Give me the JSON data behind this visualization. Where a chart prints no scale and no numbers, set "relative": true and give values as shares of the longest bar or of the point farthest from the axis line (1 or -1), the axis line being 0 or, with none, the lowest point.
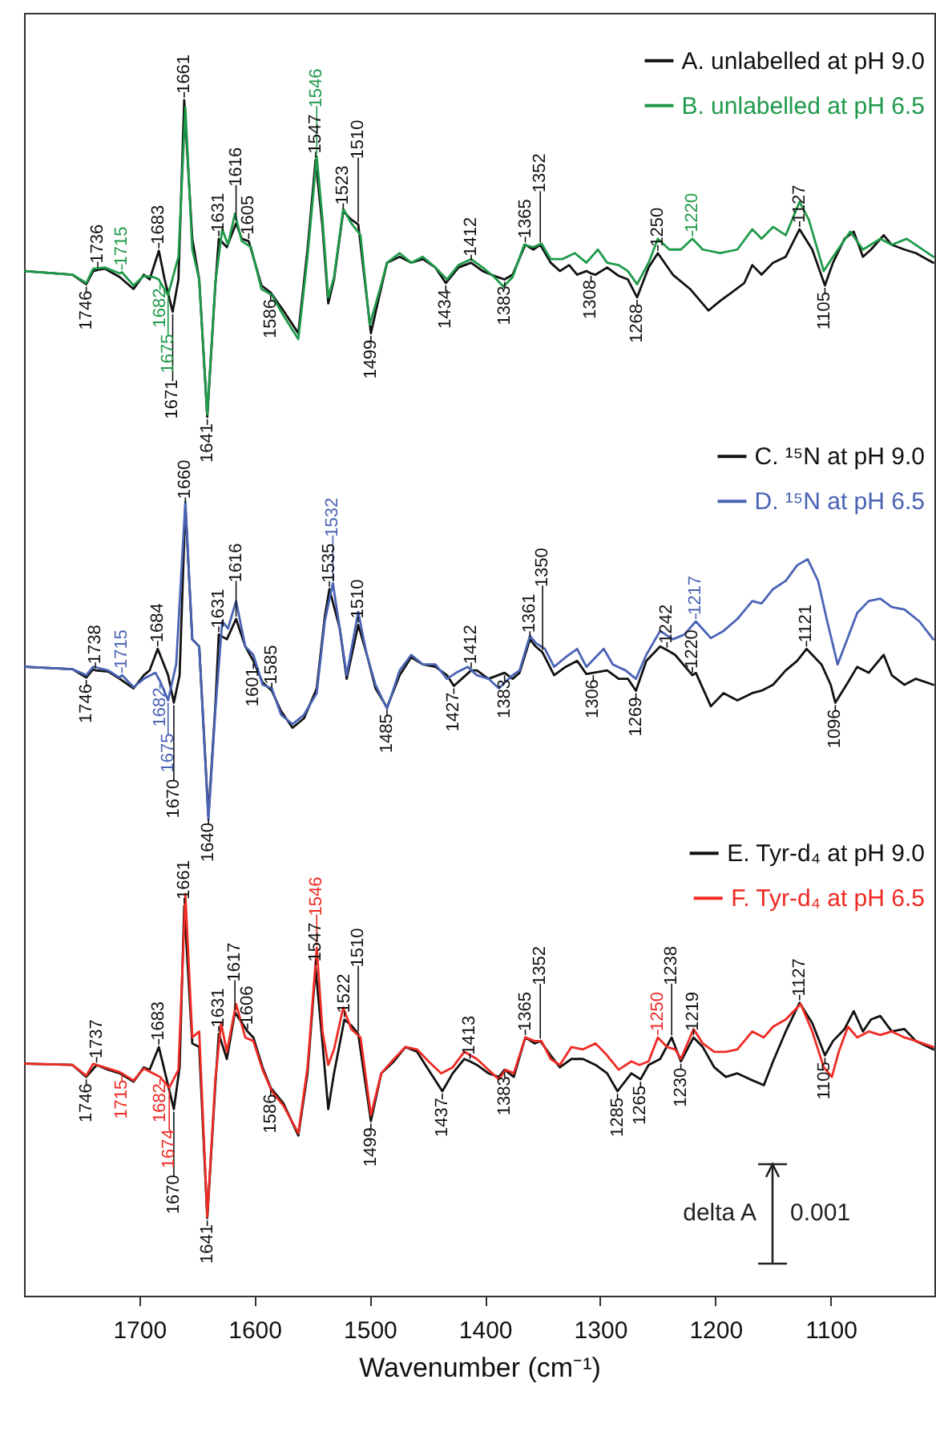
{
  "chart_data": {
    "type": "line",
    "relative": true,
    "xlabel": "Wavenumber (cm⁻¹)",
    "xlim": [
      1800,
      1010
    ],
    "xticks": [
      1700,
      1600,
      1500,
      1400,
      1300,
      1200,
      1100
    ],
    "legend": "top right",
    "series": [
      {
        "name": "A. unlabelled at pH 9.0",
        "color": "#111111",
        "x": [
          1799,
          1758,
          1746,
          1740,
          1736,
          1730,
          1717,
          1705,
          1696,
          1691,
          1683,
          1678,
          1671,
          1666,
          1661,
          1654,
          1648,
          1641,
          1634,
          1631,
          1624,
          1616,
          1611,
          1605,
          1594,
          1586,
          1575,
          1562,
          1554,
          1547,
          1541,
          1536,
          1531,
          1523,
          1516,
          1510,
          1499,
          1492,
          1485,
          1474,
          1464,
          1454,
          1443,
          1434,
          1423,
          1412,
          1402,
          1392,
          1383,
          1376,
          1365,
          1358,
          1352,
          1343,
          1335,
          1327,
          1320,
          1312,
          1308,
          1304,
          1294,
          1284,
          1276,
          1268,
          1258,
          1250,
          1237,
          1222,
          1206,
          1196,
          1186,
          1175,
          1168,
          1160,
          1150,
          1139,
          1127,
          1116,
          1105,
          1098,
          1088,
          1080,
          1072,
          1065,
          1054,
          1047,
          1036,
          1026,
          1011
        ],
        "values": [
          0.857,
          0.854,
          0.846,
          0.857,
          0.858,
          0.859,
          0.852,
          0.842,
          0.854,
          0.85,
          0.874,
          0.85,
          0.823,
          0.85,
          1.0,
          0.884,
          0.85,
          0.735,
          0.845,
          0.884,
          0.877,
          0.897,
          0.884,
          0.882,
          0.845,
          0.839,
          0.824,
          0.805,
          0.875,
          0.95,
          0.894,
          0.83,
          0.85,
          0.907,
          0.9,
          0.896,
          0.805,
          0.835,
          0.864,
          0.869,
          0.864,
          0.867,
          0.86,
          0.847,
          0.86,
          0.864,
          0.857,
          0.853,
          0.85,
          0.854,
          0.879,
          0.875,
          0.879,
          0.864,
          0.857,
          0.862,
          0.854,
          0.857,
          0.855,
          0.854,
          0.86,
          0.853,
          0.85,
          0.835,
          0.86,
          0.872,
          0.854,
          0.842,
          0.824,
          0.832,
          0.839,
          0.847,
          0.862,
          0.854,
          0.864,
          0.869,
          0.892,
          0.875,
          0.845,
          0.864,
          0.884,
          0.89,
          0.869,
          0.875,
          0.887,
          0.879,
          0.875,
          0.872,
          0.864
        ]
      },
      {
        "name": "B. unlabelled at pH 6.5",
        "color": "#1f9a4a",
        "x": [
          1799,
          1758,
          1746,
          1740,
          1730,
          1717,
          1715,
          1705,
          1696,
          1688,
          1683,
          1682,
          1675,
          1666,
          1660,
          1654,
          1648,
          1641,
          1634,
          1628,
          1623,
          1617,
          1611,
          1603,
          1594,
          1585,
          1575,
          1562,
          1554,
          1546,
          1541,
          1536,
          1531,
          1523,
          1516,
          1508,
          1500,
          1492,
          1485,
          1474,
          1464,
          1454,
          1443,
          1433,
          1423,
          1412,
          1402,
          1392,
          1384,
          1376,
          1366,
          1358,
          1351,
          1343,
          1333,
          1322,
          1312,
          1302,
          1294,
          1284,
          1276,
          1268,
          1258,
          1250,
          1240,
          1230,
          1220,
          1211,
          1196,
          1181,
          1168,
          1160,
          1150,
          1139,
          1127,
          1119,
          1106,
          1098,
          1083,
          1072,
          1057,
          1047,
          1034,
          1011
        ],
        "values": [
          0.857,
          0.854,
          0.847,
          0.859,
          0.86,
          0.855,
          0.856,
          0.845,
          0.853,
          0.852,
          0.85,
          0.848,
          0.837,
          0.869,
          0.994,
          0.875,
          0.85,
          0.737,
          0.847,
          0.892,
          0.879,
          0.905,
          0.882,
          0.877,
          0.842,
          0.837,
          0.82,
          0.8,
          0.869,
          0.953,
          0.9,
          0.835,
          0.852,
          0.909,
          0.897,
          0.887,
          0.812,
          0.839,
          0.864,
          0.872,
          0.864,
          0.869,
          0.86,
          0.85,
          0.862,
          0.867,
          0.86,
          0.852,
          0.844,
          0.852,
          0.879,
          0.877,
          0.88,
          0.867,
          0.867,
          0.872,
          0.864,
          0.875,
          0.864,
          0.862,
          0.857,
          0.846,
          0.864,
          0.884,
          0.875,
          0.875,
          0.884,
          0.875,
          0.872,
          0.875,
          0.892,
          0.884,
          0.894,
          0.887,
          0.915,
          0.9,
          0.857,
          0.869,
          0.89,
          0.875,
          0.884,
          0.879,
          0.884,
          0.869
        ]
      },
      {
        "name": "C. ¹⁵N at pH 9.0",
        "color": "#111111",
        "x": [
          1799,
          1758,
          1746,
          1740,
          1738,
          1727,
          1717,
          1705,
          1696,
          1691,
          1684,
          1675,
          1670,
          1665,
          1660,
          1654,
          1648,
          1640,
          1634,
          1631,
          1624,
          1616,
          1608,
          1601,
          1593,
          1585,
          1577,
          1567,
          1557,
          1546,
          1539,
          1535,
          1526,
          1520,
          1510,
          1503,
          1495,
          1485,
          1474,
          1464,
          1454,
          1443,
          1433,
          1427,
          1412,
          1407,
          1397,
          1383,
          1376,
          1370,
          1361,
          1356,
          1350,
          1340,
          1330,
          1320,
          1312,
          1306,
          1294,
          1284,
          1276,
          1269,
          1260,
          1248,
          1242,
          1235,
          1220,
          1217,
          1204,
          1193,
          1181,
          1168,
          1160,
          1150,
          1139,
          1129,
          1121,
          1108,
          1100,
          1096,
          1085,
          1077,
          1067,
          1054,
          1047,
          1036,
          1026,
          1011
        ],
        "values": [
          0.526,
          0.524,
          0.517,
          0.524,
          0.523,
          0.522,
          0.516,
          0.508,
          0.519,
          0.523,
          0.541,
          0.519,
          0.496,
          0.519,
          0.661,
          0.549,
          0.543,
          0.401,
          0.493,
          0.553,
          0.549,
          0.566,
          0.543,
          0.531,
          0.513,
          0.506,
          0.489,
          0.475,
          0.483,
          0.508,
          0.568,
          0.591,
          0.558,
          0.516,
          0.561,
          0.538,
          0.508,
          0.492,
          0.519,
          0.534,
          0.528,
          0.526,
          0.519,
          0.51,
          0.523,
          0.523,
          0.516,
          0.521,
          0.516,
          0.521,
          0.549,
          0.543,
          0.538,
          0.519,
          0.526,
          0.531,
          0.52,
          0.521,
          0.523,
          0.516,
          0.516,
          0.506,
          0.531,
          0.543,
          0.54,
          0.536,
          0.519,
          0.521,
          0.493,
          0.504,
          0.498,
          0.504,
          0.506,
          0.511,
          0.523,
          0.531,
          0.541,
          0.528,
          0.511,
          0.496,
          0.513,
          0.526,
          0.521,
          0.536,
          0.519,
          0.511,
          0.516,
          0.511
        ]
      },
      {
        "name": "D. ¹⁵N at pH 6.5",
        "color": "#4a63b5",
        "x": [
          1799,
          1758,
          1746,
          1740,
          1727,
          1717,
          1715,
          1705,
          1696,
          1686,
          1682,
          1675,
          1668,
          1660,
          1654,
          1648,
          1640,
          1634,
          1628,
          1623,
          1616,
          1608,
          1601,
          1593,
          1585,
          1577,
          1567,
          1557,
          1546,
          1539,
          1532,
          1526,
          1520,
          1510,
          1503,
          1495,
          1485,
          1474,
          1464,
          1454,
          1443,
          1433,
          1425,
          1415,
          1407,
          1397,
          1388,
          1376,
          1370,
          1361,
          1356,
          1348,
          1340,
          1330,
          1320,
          1312,
          1304,
          1297,
          1289,
          1278,
          1269,
          1260,
          1248,
          1237,
          1227,
          1217,
          1204,
          1193,
          1181,
          1168,
          1160,
          1150,
          1139,
          1129,
          1120,
          1111,
          1103,
          1094,
          1088,
          1077,
          1067,
          1057,
          1047,
          1036,
          1023,
          1011
        ],
        "values": [
          0.526,
          0.524,
          0.519,
          0.526,
          0.523,
          0.517,
          0.519,
          0.509,
          0.516,
          0.521,
          0.514,
          0.498,
          0.528,
          0.664,
          0.549,
          0.543,
          0.398,
          0.489,
          0.564,
          0.558,
          0.581,
          0.543,
          0.536,
          0.511,
          0.508,
          0.486,
          0.478,
          0.486,
          0.504,
          0.564,
          0.596,
          0.558,
          0.519,
          0.572,
          0.538,
          0.511,
          0.491,
          0.523,
          0.536,
          0.528,
          0.528,
          0.516,
          0.521,
          0.526,
          0.519,
          0.516,
          0.508,
          0.519,
          0.523,
          0.552,
          0.546,
          0.541,
          0.526,
          0.534,
          0.541,
          0.526,
          0.534,
          0.541,
          0.528,
          0.523,
          0.516,
          0.536,
          0.556,
          0.549,
          0.553,
          0.564,
          0.55,
          0.556,
          0.566,
          0.581,
          0.579,
          0.591,
          0.598,
          0.611,
          0.616,
          0.598,
          0.564,
          0.528,
          0.543,
          0.571,
          0.581,
          0.583,
          0.576,
          0.574,
          0.564,
          0.549
        ]
      },
      {
        "name": "E. Tyr-d₄ at pH 9.0",
        "color": "#111111",
        "x": [
          1799,
          1758,
          1746,
          1737,
          1727,
          1717,
          1705,
          1696,
          1691,
          1683,
          1675,
          1670,
          1665,
          1661,
          1654,
          1648,
          1641,
          1634,
          1631,
          1624,
          1617,
          1606,
          1601,
          1593,
          1586,
          1575,
          1562,
          1554,
          1547,
          1541,
          1536,
          1531,
          1522,
          1516,
          1510,
          1499,
          1490,
          1479,
          1469,
          1459,
          1449,
          1437,
          1428,
          1418,
          1413,
          1407,
          1397,
          1388,
          1383,
          1375,
          1365,
          1357,
          1352,
          1343,
          1335,
          1325,
          1315,
          1304,
          1294,
          1285,
          1273,
          1265,
          1258,
          1248,
          1238,
          1230,
          1219,
          1211,
          1201,
          1191,
          1181,
          1170,
          1158,
          1150,
          1139,
          1127,
          1116,
          1105,
          1098,
          1088,
          1080,
          1072,
          1065,
          1057,
          1047,
          1036,
          1026,
          1011
        ],
        "values": [
          0.194,
          0.193,
          0.183,
          0.193,
          0.189,
          0.186,
          0.179,
          0.191,
          0.189,
          0.208,
          0.176,
          0.156,
          0.191,
          0.326,
          0.211,
          0.208,
          0.065,
          0.176,
          0.219,
          0.198,
          0.237,
          0.221,
          0.216,
          0.191,
          0.174,
          0.161,
          0.134,
          0.186,
          0.274,
          0.211,
          0.156,
          0.186,
          0.231,
          0.226,
          0.219,
          0.146,
          0.186,
          0.196,
          0.208,
          0.204,
          0.189,
          0.171,
          0.186,
          0.198,
          0.196,
          0.193,
          0.186,
          0.183,
          0.189,
          0.183,
          0.216,
          0.211,
          0.213,
          0.201,
          0.191,
          0.198,
          0.198,
          0.193,
          0.186,
          0.171,
          0.186,
          0.181,
          0.193,
          0.198,
          0.216,
          0.196,
          0.216,
          0.208,
          0.191,
          0.183,
          0.186,
          0.181,
          0.176,
          0.196,
          0.221,
          0.245,
          0.228,
          0.201,
          0.213,
          0.223,
          0.238,
          0.221,
          0.231,
          0.234,
          0.221,
          0.223,
          0.213,
          0.206
        ]
      },
      {
        "name": "F. Tyr-d₄ at pH 6.5",
        "color": "#ee2b24",
        "x": [
          1799,
          1758,
          1746,
          1740,
          1727,
          1717,
          1715,
          1705,
          1696,
          1688,
          1682,
          1674,
          1666,
          1660,
          1654,
          1648,
          1641,
          1634,
          1629,
          1624,
          1616,
          1608,
          1601,
          1593,
          1585,
          1575,
          1562,
          1554,
          1546,
          1541,
          1536,
          1531,
          1523,
          1516,
          1508,
          1499,
          1490,
          1479,
          1469,
          1459,
          1449,
          1438,
          1428,
          1418,
          1407,
          1397,
          1388,
          1382,
          1375,
          1365,
          1357,
          1351,
          1343,
          1335,
          1325,
          1315,
          1304,
          1294,
          1284,
          1273,
          1266,
          1258,
          1250,
          1242,
          1235,
          1230,
          1219,
          1211,
          1201,
          1191,
          1181,
          1168,
          1158,
          1150,
          1139,
          1126,
          1116,
          1106,
          1099,
          1093,
          1085,
          1077,
          1067,
          1057,
          1047,
          1036,
          1026,
          1011
        ],
        "values": [
          0.194,
          0.193,
          0.184,
          0.194,
          0.19,
          0.187,
          0.186,
          0.18,
          0.19,
          0.186,
          0.183,
          0.174,
          0.189,
          0.336,
          0.216,
          0.221,
          0.066,
          0.181,
          0.228,
          0.204,
          0.244,
          0.216,
          0.213,
          0.189,
          0.171,
          0.159,
          0.136,
          0.191,
          0.291,
          0.221,
          0.193,
          0.206,
          0.241,
          0.223,
          0.216,
          0.151,
          0.186,
          0.198,
          0.208,
          0.206,
          0.196,
          0.186,
          0.191,
          0.204,
          0.198,
          0.189,
          0.181,
          0.189,
          0.186,
          0.216,
          0.213,
          0.213,
          0.198,
          0.193,
          0.208,
          0.206,
          0.211,
          0.201,
          0.189,
          0.196,
          0.193,
          0.196,
          0.216,
          0.208,
          0.206,
          0.198,
          0.223,
          0.211,
          0.204,
          0.204,
          0.206,
          0.221,
          0.216,
          0.225,
          0.231,
          0.244,
          0.221,
          0.191,
          0.183,
          0.204,
          0.225,
          0.216,
          0.221,
          0.218,
          0.221,
          0.216,
          0.213,
          0.208
        ]
      }
    ],
    "annotations": [
      {
        "text": "1746",
        "x": 1746,
        "y": 0.846
      },
      {
        "text": "1736",
        "x": 1736,
        "y": 0.858
      },
      {
        "text": "1715",
        "x": 1715,
        "y": 0.856
      },
      {
        "text": "1682",
        "x": 1682,
        "y": 0.848
      },
      {
        "text": "1683",
        "x": 1683,
        "y": 0.874
      },
      {
        "text": "1675",
        "x": 1675,
        "y": 0.837
      },
      {
        "text": "1671",
        "x": 1671,
        "y": 0.823
      },
      {
        "text": "1661",
        "x": 1661,
        "y": 1.0
      },
      {
        "text": "1641",
        "x": 1641,
        "y": 0.735
      },
      {
        "text": "1631",
        "x": 1631,
        "y": 0.884
      },
      {
        "text": "1616",
        "x": 1616,
        "y": 0.897
      },
      {
        "text": "1605",
        "x": 1605,
        "y": 0.882
      },
      {
        "text": "1586",
        "x": 1586,
        "y": 0.839
      },
      {
        "text": "1547",
        "x": 1547,
        "y": 0.95
      },
      {
        "text": "1546",
        "x": 1546,
        "y": 0.953
      },
      {
        "text": "1523",
        "x": 1523,
        "y": 0.907
      },
      {
        "text": "1510",
        "x": 1510,
        "y": 0.896
      },
      {
        "text": "1499",
        "x": 1499,
        "y": 0.805
      },
      {
        "text": "1434",
        "x": 1434,
        "y": 0.847
      },
      {
        "text": "1412",
        "x": 1412,
        "y": 0.864
      },
      {
        "text": "1383",
        "x": 1383,
        "y": 0.85
      },
      {
        "text": "1365",
        "x": 1365,
        "y": 0.879
      },
      {
        "text": "1352",
        "x": 1352,
        "y": 0.879
      },
      {
        "text": "1308",
        "x": 1308,
        "y": 0.855
      },
      {
        "text": "1268",
        "x": 1268,
        "y": 0.835
      },
      {
        "text": "1250",
        "x": 1250,
        "y": 0.872
      },
      {
        "text": "1220",
        "x": 1220,
        "y": 0.884
      },
      {
        "text": "1127",
        "x": 1127,
        "y": 0.892
      },
      {
        "text": "1105",
        "x": 1105,
        "y": 0.845
      },
      {
        "text": "1746",
        "x": 1746,
        "y": 0.517
      },
      {
        "text": "1738",
        "x": 1738,
        "y": 0.523
      },
      {
        "text": "1715",
        "x": 1715,
        "y": 0.519
      },
      {
        "text": "1682",
        "x": 1682,
        "y": 0.514
      },
      {
        "text": "1684",
        "x": 1684,
        "y": 0.541
      },
      {
        "text": "1675",
        "x": 1675,
        "y": 0.498
      },
      {
        "text": "1670",
        "x": 1670,
        "y": 0.496
      },
      {
        "text": "1660",
        "x": 1660,
        "y": 0.661
      },
      {
        "text": "1640",
        "x": 1640,
        "y": 0.401
      },
      {
        "text": "1631",
        "x": 1631,
        "y": 0.553
      },
      {
        "text": "1616",
        "x": 1616,
        "y": 0.566
      },
      {
        "text": "1601",
        "x": 1601,
        "y": 0.531
      },
      {
        "text": "1585",
        "x": 1585,
        "y": 0.506
      },
      {
        "text": "1535",
        "x": 1535,
        "y": 0.591
      },
      {
        "text": "1532",
        "x": 1532,
        "y": 0.596
      },
      {
        "text": "1510",
        "x": 1510,
        "y": 0.561
      },
      {
        "text": "1485",
        "x": 1485,
        "y": 0.492
      },
      {
        "text": "1427",
        "x": 1427,
        "y": 0.51
      },
      {
        "text": "1412",
        "x": 1412,
        "y": 0.523
      },
      {
        "text": "1383",
        "x": 1383,
        "y": 0.521
      },
      {
        "text": "1361",
        "x": 1361,
        "y": 0.549
      },
      {
        "text": "1350",
        "x": 1350,
        "y": 0.538
      },
      {
        "text": "1306",
        "x": 1306,
        "y": 0.521
      },
      {
        "text": "1269",
        "x": 1269,
        "y": 0.506
      },
      {
        "text": "1242",
        "x": 1242,
        "y": 0.54
      },
      {
        "text": "1217",
        "x": 1217,
        "y": 0.564
      },
      {
        "text": "1220",
        "x": 1220,
        "y": 0.519
      },
      {
        "text": "1121",
        "x": 1121,
        "y": 0.541
      },
      {
        "text": "1096",
        "x": 1096,
        "y": 0.496
      },
      {
        "text": "1746",
        "x": 1746,
        "y": 0.183
      },
      {
        "text": "1737",
        "x": 1737,
        "y": 0.193
      },
      {
        "text": "1715",
        "x": 1715,
        "y": 0.186
      },
      {
        "text": "1682",
        "x": 1682,
        "y": 0.183
      },
      {
        "text": "1683",
        "x": 1683,
        "y": 0.208
      },
      {
        "text": "1674",
        "x": 1674,
        "y": 0.174
      },
      {
        "text": "1670",
        "x": 1670,
        "y": 0.156
      },
      {
        "text": "1661",
        "x": 1661,
        "y": 0.326
      },
      {
        "text": "1641",
        "x": 1641,
        "y": 0.065
      },
      {
        "text": "1631",
        "x": 1631,
        "y": 0.219
      },
      {
        "text": "1617",
        "x": 1617,
        "y": 0.237
      },
      {
        "text": "1606",
        "x": 1606,
        "y": 0.221
      },
      {
        "text": "1586",
        "x": 1586,
        "y": 0.174
      },
      {
        "text": "1547",
        "x": 1547,
        "y": 0.274
      },
      {
        "text": "1546",
        "x": 1546,
        "y": 0.291
      },
      {
        "text": "1522",
        "x": 1522,
        "y": 0.231
      },
      {
        "text": "1510",
        "x": 1510,
        "y": 0.219
      },
      {
        "text": "1499",
        "x": 1499,
        "y": 0.146
      },
      {
        "text": "1437",
        "x": 1437,
        "y": 0.171
      },
      {
        "text": "1413",
        "x": 1413,
        "y": 0.196
      },
      {
        "text": "1383",
        "x": 1383,
        "y": 0.189
      },
      {
        "text": "1365",
        "x": 1365,
        "y": 0.216
      },
      {
        "text": "1352",
        "x": 1352,
        "y": 0.213
      },
      {
        "text": "1285",
        "x": 1285,
        "y": 0.171
      },
      {
        "text": "1265",
        "x": 1265,
        "y": 0.181
      },
      {
        "text": "1250",
        "x": 1250,
        "y": 0.216
      },
      {
        "text": "1238",
        "x": 1238,
        "y": 0.216
      },
      {
        "text": "1230",
        "x": 1230,
        "y": 0.196
      },
      {
        "text": "1219",
        "x": 1219,
        "y": 0.216
      },
      {
        "text": "1127",
        "x": 1127,
        "y": 0.245
      },
      {
        "text": "1105",
        "x": 1105,
        "y": 0.201
      },
      "delta A",
      "0.001"
    ]
  }
}
